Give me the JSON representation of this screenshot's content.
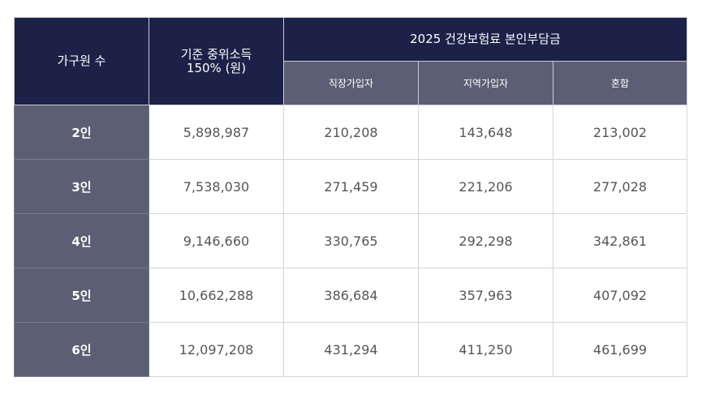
{
  "table": {
    "header": {
      "household": "가구원 수",
      "income_line1": "기준 중위소득",
      "income_line2": "150% (원)",
      "group": "2025 건강보험료 본인부담금",
      "sub": [
        "직장가입자",
        "지역가입자",
        "혼합"
      ]
    },
    "rows": [
      {
        "label": "2인",
        "income": "5,898,987",
        "employee": "210,208",
        "regional": "143,648",
        "mixed": "213,002"
      },
      {
        "label": "3인",
        "income": "7,538,030",
        "employee": "271,459",
        "regional": "221,206",
        "mixed": "277,028"
      },
      {
        "label": "4인",
        "income": "9,146,660",
        "employee": "330,765",
        "regional": "292,298",
        "mixed": "342,861"
      },
      {
        "label": "5인",
        "income": "10,662,288",
        "employee": "386,684",
        "regional": "357,963",
        "mixed": "407,092"
      },
      {
        "label": "6인",
        "income": "12,097,208",
        "employee": "431,294",
        "regional": "411,250",
        "mixed": "461,699"
      }
    ]
  },
  "colors": {
    "header_dark": "#1c2147",
    "header_sub": "#5c5e73",
    "row_label_bg": "#5c5e73",
    "cell_text": "#555555",
    "border": "#d4d5da"
  }
}
